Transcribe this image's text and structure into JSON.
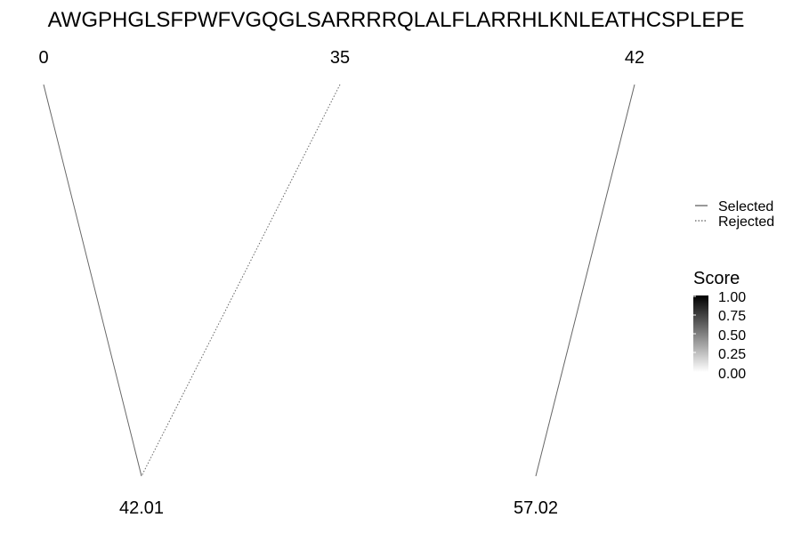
{
  "sequence": "AWGPHGLSFPWFVGQGLSARRRRQLALFLARRHLKNLEATHCSPLEPE",
  "top_labels": [
    "0",
    "35",
    "42"
  ],
  "bottom_labels": [
    "42.01",
    "57.02"
  ],
  "connections": [
    {
      "from": "0",
      "to": "42.01",
      "status": "Selected",
      "score": 0.55
    },
    {
      "from": "35",
      "to": "42.01",
      "status": "Rejected",
      "score": 0.55
    },
    {
      "from": "42",
      "to": "57.02",
      "status": "Selected",
      "score": 0.55
    }
  ],
  "legend": {
    "selected_label": "Selected",
    "rejected_label": "Rejected",
    "score_title": "Score",
    "score_ticks": [
      "1.00",
      "0.75",
      "0.50",
      "0.25",
      "0.00"
    ],
    "score_range": [
      0,
      1
    ],
    "gradient_high_color": "#000000",
    "gradient_low_color": "#ffffff"
  }
}
